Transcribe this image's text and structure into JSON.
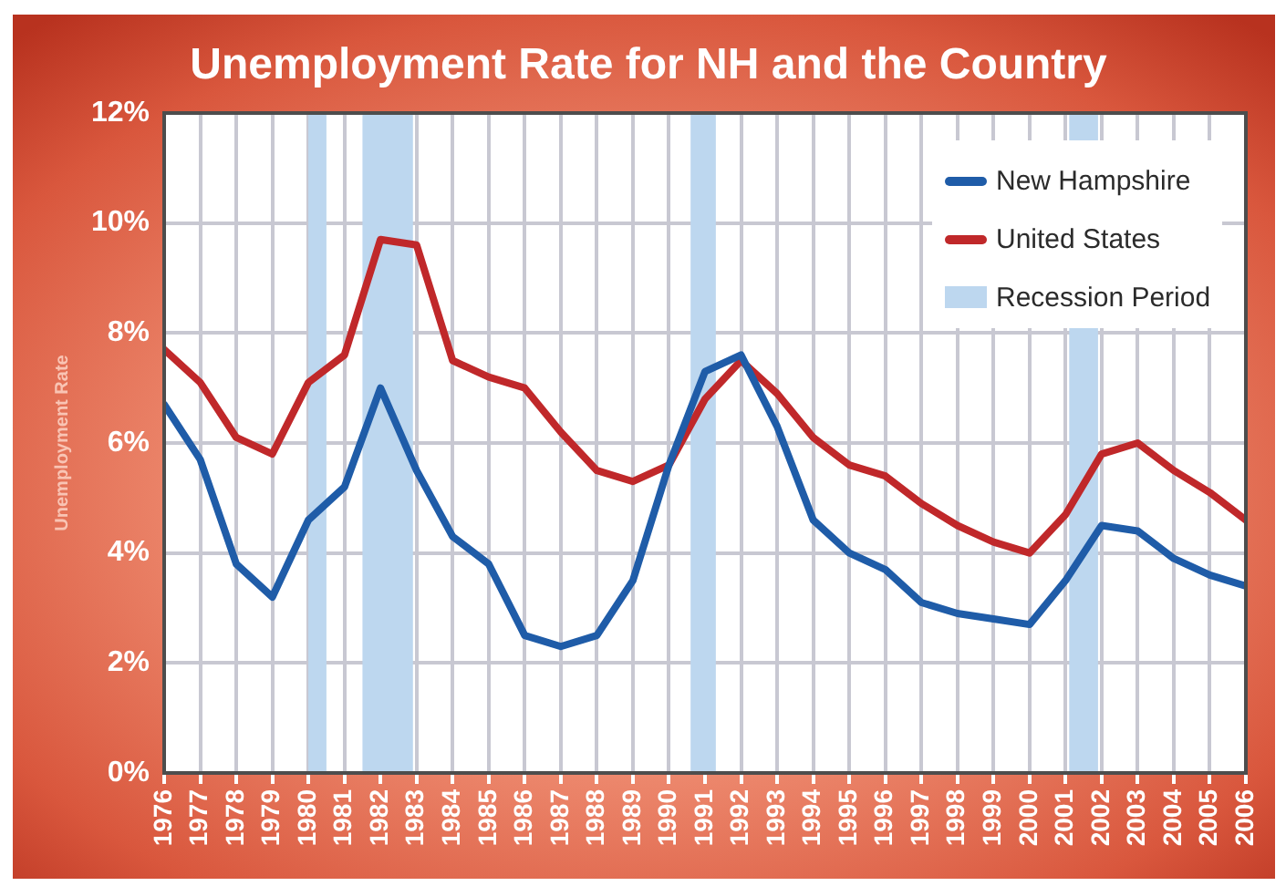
{
  "chart_data": {
    "type": "line",
    "title": "Unemployment Rate for NH and the Country",
    "ylabel": "Unemployment Rate",
    "x": [
      1976,
      1977,
      1978,
      1979,
      1980,
      1981,
      1982,
      1983,
      1984,
      1985,
      1986,
      1987,
      1988,
      1989,
      1990,
      1991,
      1992,
      1993,
      1994,
      1995,
      1996,
      1997,
      1998,
      1999,
      2000,
      2001,
      2002,
      2003,
      2004,
      2005,
      2006
    ],
    "xlim": [
      1976,
      2006
    ],
    "xticks": [
      1976,
      1977,
      1978,
      1979,
      1980,
      1981,
      1982,
      1983,
      1984,
      1985,
      1986,
      1987,
      1988,
      1989,
      1990,
      1991,
      1992,
      1993,
      1994,
      1995,
      1996,
      1997,
      1998,
      1999,
      2000,
      2001,
      2002,
      2003,
      2004,
      2005,
      2006
    ],
    "ylim": [
      0,
      12
    ],
    "yticks": [
      {
        "value": 0,
        "label": "0%"
      },
      {
        "value": 2,
        "label": "2%"
      },
      {
        "value": 4,
        "label": "4%"
      },
      {
        "value": 6,
        "label": "6%"
      },
      {
        "value": 8,
        "label": "8%"
      },
      {
        "value": 10,
        "label": "10%"
      },
      {
        "value": 12,
        "label": "12%"
      }
    ],
    "series": [
      {
        "name": "New Hampshire",
        "color": "#1f5ca8",
        "values": [
          6.7,
          5.7,
          3.8,
          3.2,
          4.6,
          5.2,
          7.0,
          5.5,
          4.3,
          3.8,
          2.5,
          2.3,
          2.5,
          3.5,
          5.6,
          7.3,
          7.6,
          6.3,
          4.6,
          4.0,
          3.7,
          3.1,
          2.9,
          2.8,
          2.7,
          3.5,
          4.5,
          4.4,
          3.9,
          3.6,
          3.4
        ]
      },
      {
        "name": "United States",
        "color": "#c0282a",
        "values": [
          7.7,
          7.1,
          6.1,
          5.8,
          7.1,
          7.6,
          9.7,
          9.6,
          7.5,
          7.2,
          7.0,
          6.2,
          5.5,
          5.3,
          5.6,
          6.8,
          7.5,
          6.9,
          6.1,
          5.6,
          5.4,
          4.9,
          4.5,
          4.2,
          4.0,
          4.7,
          5.8,
          6.0,
          5.5,
          5.1,
          4.6
        ]
      }
    ],
    "bands": [
      {
        "axis": "x",
        "from": 1980.0,
        "to": 1980.5,
        "color": "#bdd7ef"
      },
      {
        "axis": "x",
        "from": 1981.5,
        "to": 1982.9,
        "color": "#bdd7ef"
      },
      {
        "axis": "x",
        "from": 1990.6,
        "to": 1991.3,
        "color": "#bdd7ef"
      },
      {
        "axis": "x",
        "from": 2001.1,
        "to": 2001.9,
        "label": "Recession Period",
        "color": "#bdd7ef"
      }
    ],
    "grid": true,
    "legend": "top right",
    "marker": "none"
  }
}
